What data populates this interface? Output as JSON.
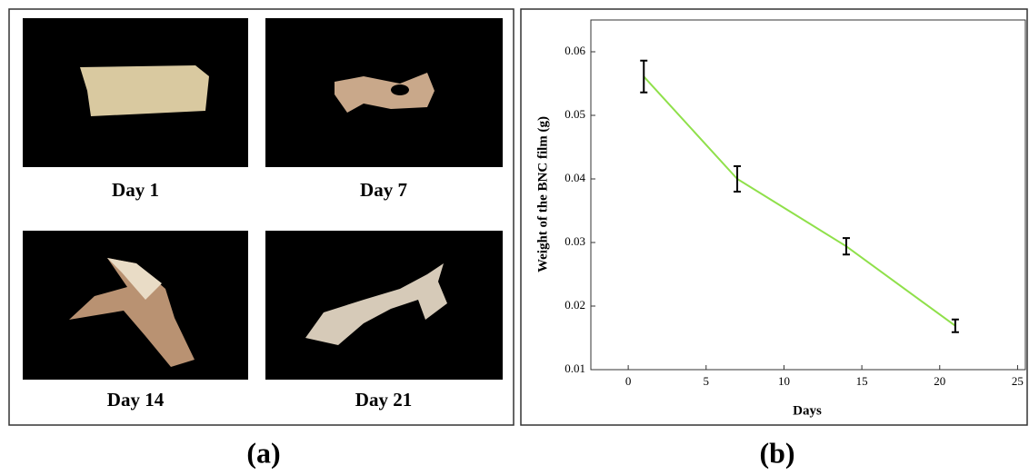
{
  "photos": {
    "captions": [
      "Day 1",
      "Day 7",
      "Day 14",
      "Day 21"
    ],
    "label": "(a)"
  },
  "chart_label": "(b)",
  "chart_data": {
    "type": "line",
    "x_label": "Days",
    "y_label": "Weight of the BNC film (g)",
    "x": [
      1,
      7,
      14,
      21
    ],
    "series": [
      {
        "color": "#8fe04a",
        "values": [
          0.0561,
          0.04,
          0.0294,
          0.0169
        ],
        "errors": [
          0.0025,
          0.002,
          0.0013,
          0.001
        ]
      }
    ],
    "xlim": [
      -2.4,
      25.5
    ],
    "xticks": [
      0,
      5,
      10,
      15,
      20,
      25
    ],
    "ylim": [
      0.01,
      0.065
    ],
    "yticks": [
      0.01,
      0.02,
      0.03,
      0.04,
      0.05,
      0.06
    ],
    "grid": false
  }
}
